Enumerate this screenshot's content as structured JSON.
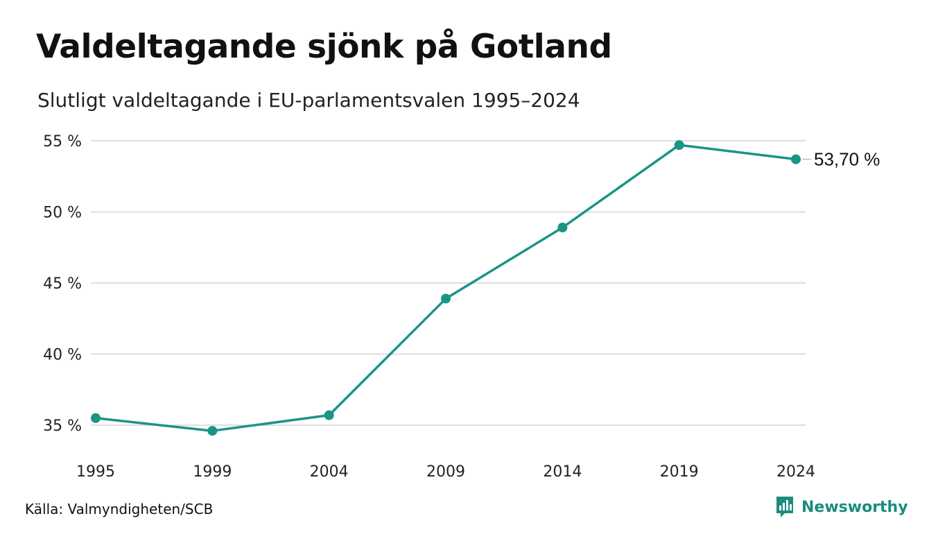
{
  "header": {
    "title": "Valdeltagande sjönk på Gotland",
    "subtitle": "Slutligt valdeltagande i EU-parlamentsvalen 1995–2024"
  },
  "chart_data": {
    "type": "line",
    "x": [
      "1995",
      "1999",
      "2004",
      "2009",
      "2014",
      "2019",
      "2024"
    ],
    "series": [
      {
        "values": [
          35.5,
          34.6,
          35.7,
          43.9,
          48.9,
          54.7,
          53.7
        ]
      }
    ],
    "ylim": [
      35,
      55
    ],
    "yticks": [
      55,
      50,
      45,
      40,
      35
    ],
    "ytick_labels": [
      "55 %",
      "50 %",
      "45 %",
      "40 %",
      "35 %"
    ],
    "end_label": "53,70 %",
    "grid": true,
    "color": "#1b9486"
  },
  "footer": {
    "source": "Källa: Valmyndigheten/SCB",
    "brand": "Newsworthy",
    "brand_icon": "bar-chart-speech-bubble-icon",
    "brand_color": "#1b8c80"
  }
}
